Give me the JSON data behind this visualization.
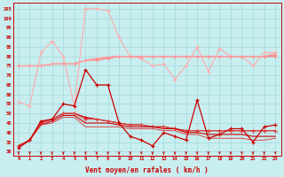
{
  "background_color": "#c8eef0",
  "grid_color": "#aadddd",
  "xlabel": "Vent moyen/en rafales ( km/h )",
  "ylim": [
    28,
    108
  ],
  "xlim": [
    -0.5,
    23.5
  ],
  "yticks": [
    30,
    35,
    40,
    45,
    50,
    55,
    60,
    65,
    70,
    75,
    80,
    85,
    90,
    95,
    100,
    105
  ],
  "x_ticks": [
    0,
    1,
    2,
    3,
    4,
    5,
    6,
    7,
    8,
    9,
    10,
    11,
    12,
    13,
    14,
    15,
    16,
    17,
    18,
    19,
    20,
    21,
    22,
    23
  ],
  "series": {
    "gust_volatile": [
      56,
      54,
      82,
      88,
      80,
      54,
      105,
      105,
      104,
      90,
      80,
      79,
      75,
      76,
      68,
      75,
      85,
      72,
      84,
      80,
      80,
      75,
      82,
      82
    ],
    "gust_flat1": [
      75,
      75,
      75,
      76,
      76,
      76,
      78,
      78,
      79,
      80,
      80,
      80,
      80,
      80,
      80,
      80,
      80,
      80,
      80,
      80,
      80,
      80,
      80,
      80
    ],
    "gust_flat2": [
      75,
      75,
      75,
      76,
      76,
      76,
      78,
      79,
      79,
      80,
      80,
      80,
      80,
      80,
      80,
      80,
      80,
      80,
      80,
      80,
      80,
      80,
      80,
      81
    ],
    "gust_flat3": [
      75,
      75,
      75,
      76,
      76,
      76,
      78,
      79,
      80,
      80,
      80,
      80,
      80,
      80,
      80,
      80,
      80,
      80,
      80,
      80,
      80,
      80,
      80,
      82
    ],
    "mean_volatile": [
      32,
      36,
      46,
      47,
      55,
      54,
      73,
      65,
      65,
      45,
      38,
      36,
      33,
      40,
      38,
      36,
      57,
      37,
      39,
      42,
      42,
      35,
      43,
      44
    ],
    "mean_flat1": [
      33,
      36,
      45,
      47,
      50,
      50,
      48,
      47,
      46,
      45,
      44,
      44,
      43,
      43,
      42,
      41,
      41,
      41,
      41,
      41,
      41,
      41,
      41,
      41
    ],
    "mean_flat2": [
      33,
      36,
      45,
      47,
      50,
      50,
      47,
      47,
      46,
      45,
      44,
      44,
      43,
      43,
      42,
      41,
      41,
      41,
      41,
      41,
      41,
      41,
      41,
      41
    ],
    "mean_flat3": [
      33,
      36,
      44,
      46,
      49,
      49,
      45,
      45,
      45,
      44,
      43,
      43,
      43,
      42,
      42,
      40,
      40,
      39,
      39,
      39,
      39,
      38,
      38,
      38
    ],
    "mean_flat4": [
      33,
      36,
      44,
      45,
      48,
      48,
      43,
      43,
      43,
      43,
      42,
      42,
      42,
      41,
      41,
      39,
      39,
      37,
      37,
      37,
      37,
      36,
      36,
      37
    ]
  },
  "colors": {
    "light_pink": "#ffaaaa",
    "salmon": "#ff8888",
    "dark_red": "#cc0000",
    "mid_red": "#dd4444"
  }
}
